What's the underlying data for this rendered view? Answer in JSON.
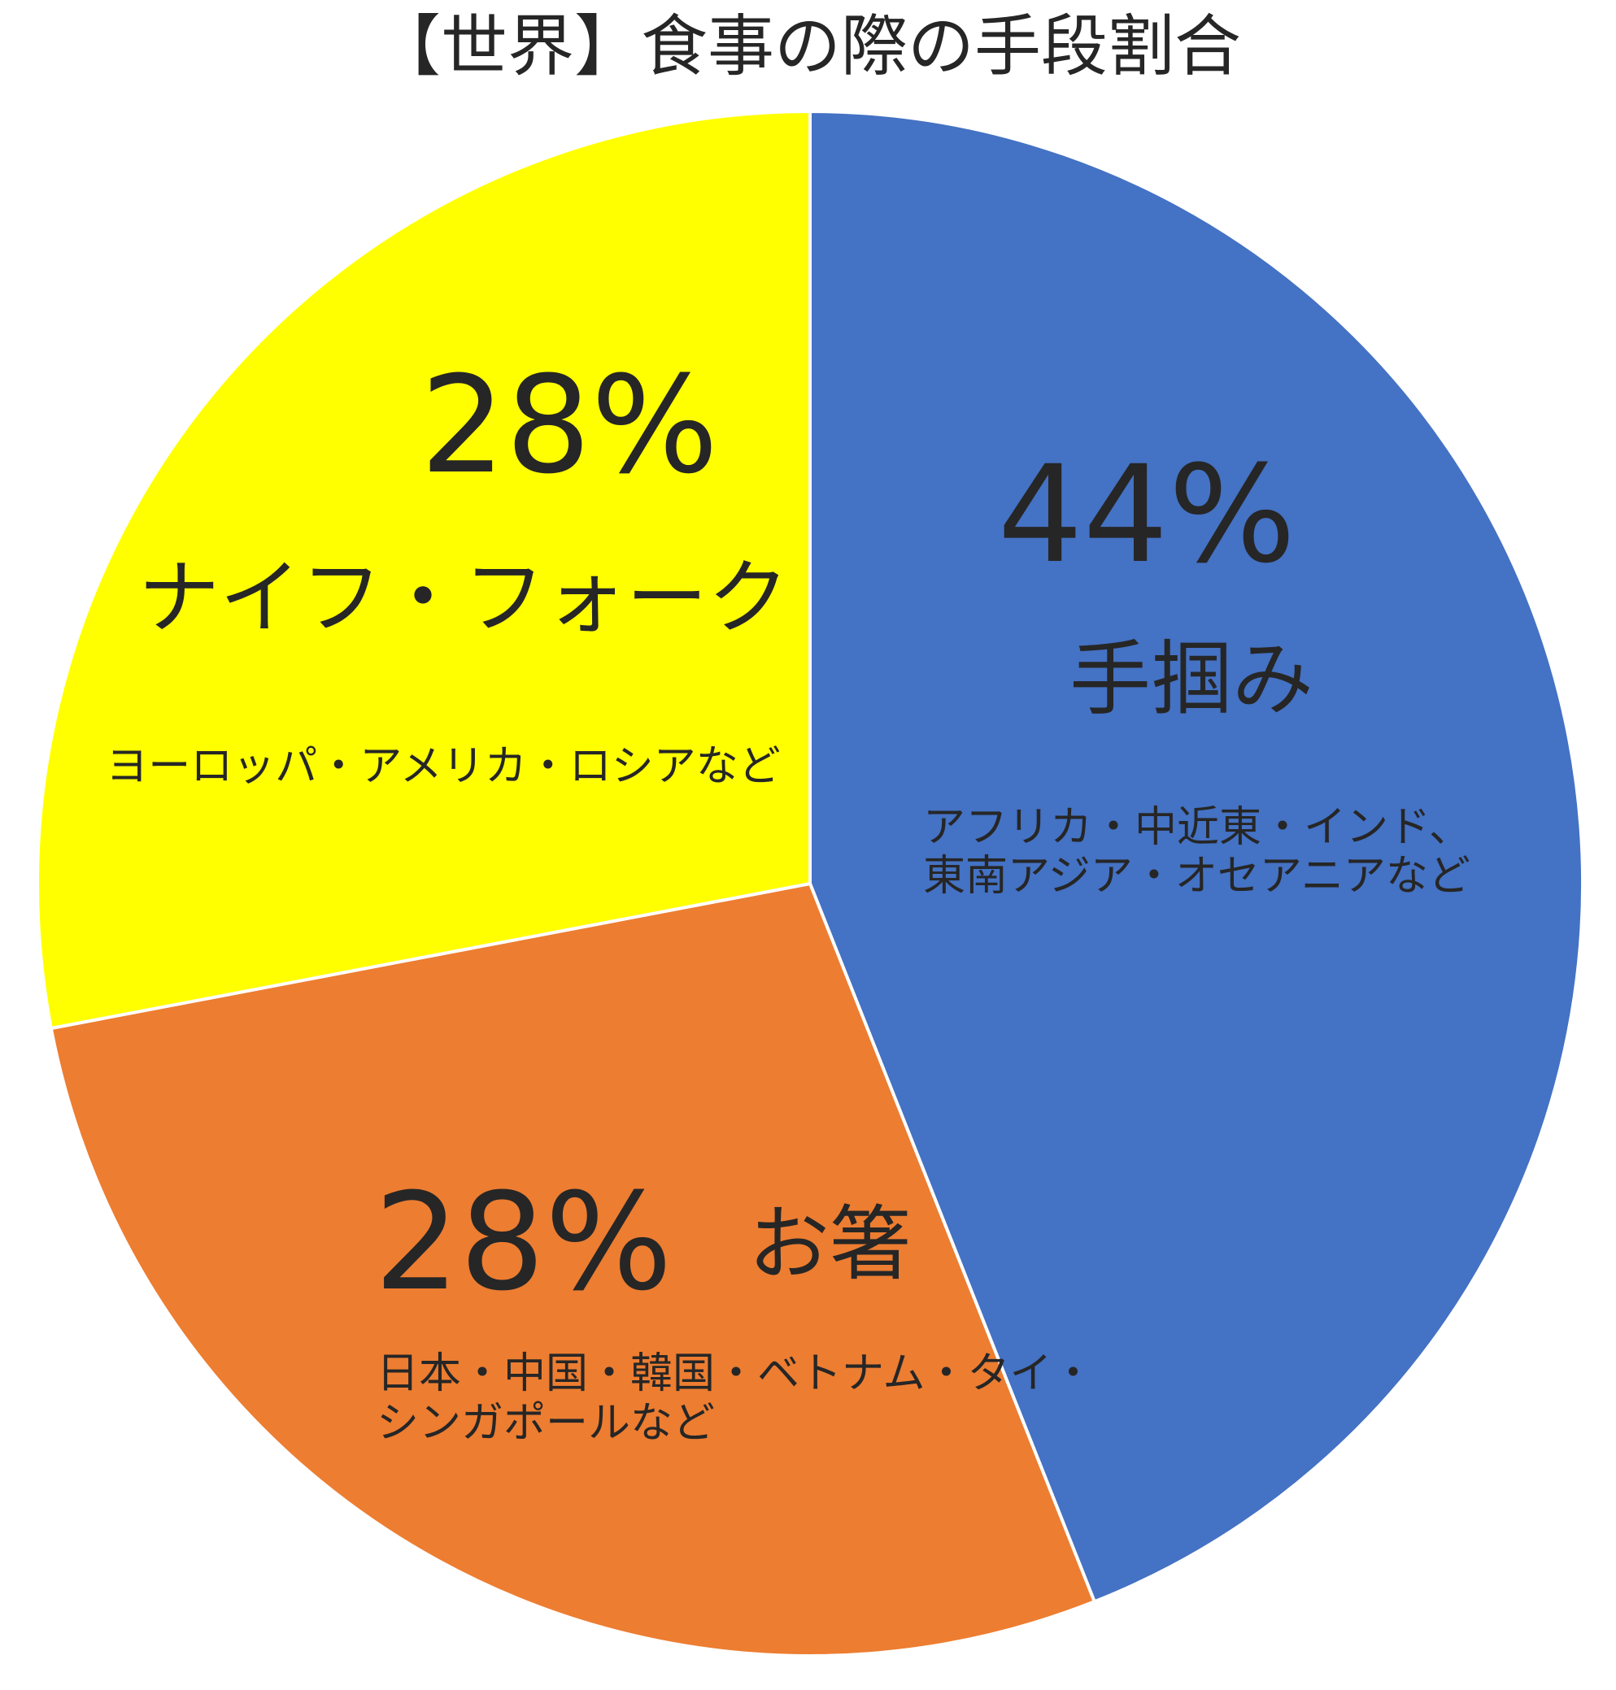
{
  "chart_data": {
    "type": "pie",
    "title": "【世界】食事の際の手段割合",
    "slices": [
      {
        "percent_label": "44%",
        "value": 44,
        "label": "手掴み",
        "note_lines": [
          "アフリカ・中近東・インド、",
          "東南アジア・オセアニアなど"
        ],
        "color": "#4472C4"
      },
      {
        "percent_label": "28%",
        "value": 28,
        "label": "お箸",
        "note_lines": [
          "日本・中国・韓国・ベトナム・タイ・",
          "シンガポールなど"
        ],
        "color": "#ED7D31"
      },
      {
        "percent_label": "28%",
        "value": 28,
        "label": "ナイフ・フォーク",
        "note_lines": [
          "ヨーロッパ・アメリカ・ロシアなど"
        ],
        "color": "#FFFF00"
      }
    ],
    "start": "12 o'clock",
    "direction": "clockwise",
    "legend": "none",
    "slice_border_color": "#FFFFFF",
    "text_color": "#262626"
  }
}
